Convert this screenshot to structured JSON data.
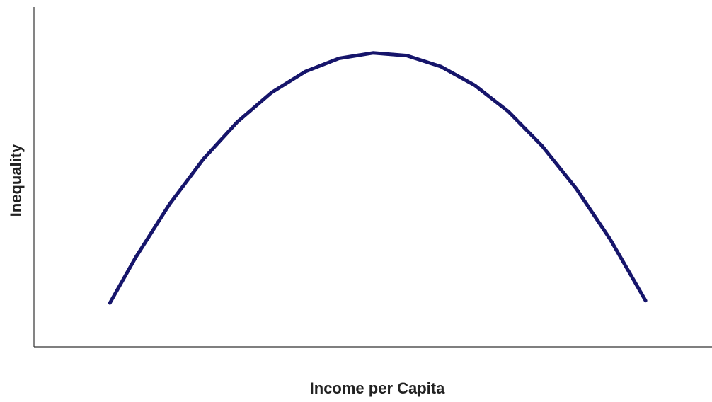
{
  "chart_data": {
    "type": "line",
    "x_label": "Income per Capita",
    "y_label": "Inequality",
    "x": [
      11.2,
      15,
      20,
      25,
      30,
      35,
      40,
      45,
      50,
      55,
      60,
      65,
      70,
      75,
      80,
      85,
      90.2
    ],
    "series": [
      {
        "color": "#16156b",
        "values": [
          12.9,
          26.3,
          42.0,
          55.3,
          66.2,
          74.8,
          81.0,
          84.9,
          86.5,
          85.7,
          82.5,
          77.0,
          69.2,
          59.0,
          46.5,
          31.6,
          13.6
        ]
      }
    ],
    "xlim": [
      0,
      100
    ],
    "ylim": [
      0,
      100
    ]
  }
}
